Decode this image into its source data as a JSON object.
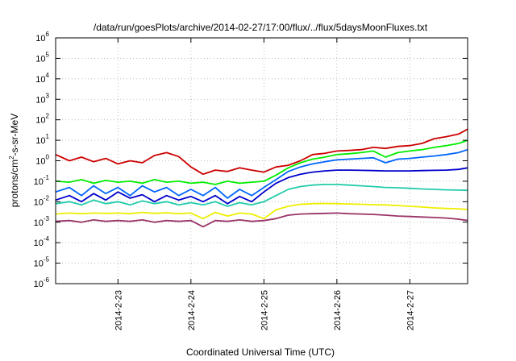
{
  "chart_data": {
    "type": "line",
    "title": "/data/run/goesPlots/archive/2014-02-27/17:00/flux/../flux/5daysMoonFluxes.txt",
    "xlabel": "Coordinated Universal Time (UTC)",
    "ylabel": "protons/cm²-s-sr-MeV",
    "ylabel_parts": {
      "pre": "protons/cm",
      "sup": "2",
      "post": "-s-sr-MeV"
    },
    "y_scale": "log",
    "ylim": [
      1e-06,
      1000000.0
    ],
    "xlim": [
      "2014-02-22T03:30",
      "2014-02-27T19:00"
    ],
    "x_ticks": [
      {
        "label": "2014-2-23",
        "date": "2014-02-23T00:00"
      },
      {
        "label": "2014-2-24",
        "date": "2014-02-24T00:00"
      },
      {
        "label": "2014-2-25",
        "date": "2014-02-25T00:00"
      },
      {
        "label": "2014-2-26",
        "date": "2014-02-26T00:00"
      },
      {
        "label": "2014-2-27",
        "date": "2014-02-27T00:00"
      }
    ],
    "y_ticks": [
      {
        "base": "10",
        "exp": "-6",
        "value": 1e-06
      },
      {
        "base": "10",
        "exp": "-5",
        "value": 1e-05
      },
      {
        "base": "10",
        "exp": "-4",
        "value": 0.0001
      },
      {
        "base": "10",
        "exp": "-3",
        "value": 0.001
      },
      {
        "base": "10",
        "exp": "-2",
        "value": 0.01
      },
      {
        "base": "10",
        "exp": "-1",
        "value": 0.1
      },
      {
        "base": "10",
        "exp": "0",
        "value": 1
      },
      {
        "base": "10",
        "exp": "1",
        "value": 10
      },
      {
        "base": "10",
        "exp": "2",
        "value": 100
      },
      {
        "base": "10",
        "exp": "3",
        "value": 1000
      },
      {
        "base": "10",
        "exp": "4",
        "value": 10000
      },
      {
        "base": "10",
        "exp": "5",
        "value": 100000
      },
      {
        "base": "10",
        "exp": "6",
        "value": 1000000
      }
    ],
    "grid": true,
    "series": [
      {
        "color": "#cc0000",
        "x": [
          "2014-02-22T03:30",
          "2014-02-22T08:00",
          "2014-02-22T12:00",
          "2014-02-22T16:00",
          "2014-02-22T20:00",
          "2014-02-23T00:00",
          "2014-02-23T04:00",
          "2014-02-23T08:00",
          "2014-02-23T12:00",
          "2014-02-23T16:00",
          "2014-02-23T20:00",
          "2014-02-24T00:00",
          "2014-02-24T04:00",
          "2014-02-24T08:00",
          "2014-02-24T12:00",
          "2014-02-24T16:00",
          "2014-02-24T20:00",
          "2014-02-25T00:00",
          "2014-02-25T04:00",
          "2014-02-25T08:00",
          "2014-02-25T12:00",
          "2014-02-25T16:00",
          "2014-02-25T20:00",
          "2014-02-26T00:00",
          "2014-02-26T04:00",
          "2014-02-26T08:00",
          "2014-02-26T12:00",
          "2014-02-26T16:00",
          "2014-02-26T20:00",
          "2014-02-27T00:00",
          "2014-02-27T04:00",
          "2014-02-27T08:00",
          "2014-02-27T12:00",
          "2014-02-27T16:00",
          "2014-02-27T19:00"
        ],
        "values": [
          2.0,
          1.0,
          1.5,
          0.9,
          1.3,
          0.7,
          1.0,
          0.8,
          1.8,
          2.5,
          1.6,
          0.5,
          0.22,
          0.35,
          0.3,
          0.45,
          0.35,
          0.28,
          0.5,
          0.6,
          1.0,
          2.0,
          2.3,
          3.0,
          3.2,
          3.5,
          4.5,
          4.0,
          5.0,
          5.5,
          7.0,
          12.0,
          15.0,
          20.0,
          35.0
        ]
      },
      {
        "color": "#00ee00",
        "x": [
          "2014-02-22T03:30",
          "2014-02-22T08:00",
          "2014-02-22T12:00",
          "2014-02-22T16:00",
          "2014-02-22T20:00",
          "2014-02-23T00:00",
          "2014-02-23T04:00",
          "2014-02-23T08:00",
          "2014-02-23T12:00",
          "2014-02-23T16:00",
          "2014-02-23T20:00",
          "2014-02-24T00:00",
          "2014-02-24T04:00",
          "2014-02-24T08:00",
          "2014-02-24T12:00",
          "2014-02-24T16:00",
          "2014-02-24T20:00",
          "2014-02-25T00:00",
          "2014-02-25T04:00",
          "2014-02-25T08:00",
          "2014-02-25T12:00",
          "2014-02-25T16:00",
          "2014-02-25T20:00",
          "2014-02-26T00:00",
          "2014-02-26T04:00",
          "2014-02-26T08:00",
          "2014-02-26T12:00",
          "2014-02-26T16:00",
          "2014-02-26T20:00",
          "2014-02-27T00:00",
          "2014-02-27T04:00",
          "2014-02-27T08:00",
          "2014-02-27T12:00",
          "2014-02-27T16:00",
          "2014-02-27T19:00"
        ],
        "values": [
          0.1,
          0.09,
          0.12,
          0.08,
          0.11,
          0.09,
          0.1,
          0.08,
          0.12,
          0.09,
          0.1,
          0.08,
          0.09,
          0.07,
          0.1,
          0.08,
          0.09,
          0.1,
          0.2,
          0.45,
          0.8,
          1.2,
          1.5,
          2.0,
          2.2,
          2.5,
          3.0,
          1.5,
          2.5,
          3.0,
          3.5,
          4.5,
          5.5,
          7.0,
          10.0
        ]
      },
      {
        "color": "#0066ff",
        "x": [
          "2014-02-22T03:30",
          "2014-02-22T08:00",
          "2014-02-22T12:00",
          "2014-02-22T16:00",
          "2014-02-22T20:00",
          "2014-02-23T00:00",
          "2014-02-23T04:00",
          "2014-02-23T08:00",
          "2014-02-23T12:00",
          "2014-02-23T16:00",
          "2014-02-23T20:00",
          "2014-02-24T00:00",
          "2014-02-24T04:00",
          "2014-02-24T08:00",
          "2014-02-24T12:00",
          "2014-02-24T16:00",
          "2014-02-24T20:00",
          "2014-02-25T00:00",
          "2014-02-25T04:00",
          "2014-02-25T08:00",
          "2014-02-25T12:00",
          "2014-02-25T16:00",
          "2014-02-25T20:00",
          "2014-02-26T00:00",
          "2014-02-26T04:00",
          "2014-02-26T08:00",
          "2014-02-26T12:00",
          "2014-02-26T16:00",
          "2014-02-26T20:00",
          "2014-02-27T00:00",
          "2014-02-27T04:00",
          "2014-02-27T08:00",
          "2014-02-27T12:00",
          "2014-02-27T16:00",
          "2014-02-27T19:00"
        ],
        "values": [
          0.03,
          0.05,
          0.02,
          0.06,
          0.025,
          0.05,
          0.02,
          0.06,
          0.03,
          0.05,
          0.02,
          0.04,
          0.02,
          0.05,
          0.015,
          0.04,
          0.02,
          0.05,
          0.12,
          0.3,
          0.5,
          0.7,
          0.9,
          1.1,
          1.2,
          1.3,
          1.4,
          0.8,
          1.2,
          1.3,
          1.5,
          1.7,
          2.0,
          2.5,
          3.5
        ]
      },
      {
        "color": "#0000cc",
        "x": [
          "2014-02-22T03:30",
          "2014-02-22T08:00",
          "2014-02-22T12:00",
          "2014-02-22T16:00",
          "2014-02-22T20:00",
          "2014-02-23T00:00",
          "2014-02-23T04:00",
          "2014-02-23T08:00",
          "2014-02-23T12:00",
          "2014-02-23T16:00",
          "2014-02-23T20:00",
          "2014-02-24T00:00",
          "2014-02-24T04:00",
          "2014-02-24T08:00",
          "2014-02-24T12:00",
          "2014-02-24T16:00",
          "2014-02-24T20:00",
          "2014-02-25T00:00",
          "2014-02-25T04:00",
          "2014-02-25T08:00",
          "2014-02-25T12:00",
          "2014-02-25T16:00",
          "2014-02-25T20:00",
          "2014-02-26T00:00",
          "2014-02-26T04:00",
          "2014-02-26T08:00",
          "2014-02-26T12:00",
          "2014-02-26T16:00",
          "2014-02-26T20:00",
          "2014-02-27T00:00",
          "2014-02-27T04:00",
          "2014-02-27T08:00",
          "2014-02-27T12:00",
          "2014-02-27T16:00",
          "2014-02-27T19:00"
        ],
        "values": [
          0.012,
          0.02,
          0.01,
          0.025,
          0.012,
          0.03,
          0.015,
          0.022,
          0.01,
          0.02,
          0.012,
          0.018,
          0.01,
          0.02,
          0.008,
          0.018,
          0.01,
          0.03,
          0.08,
          0.15,
          0.22,
          0.28,
          0.32,
          0.35,
          0.35,
          0.34,
          0.33,
          0.32,
          0.32,
          0.32,
          0.33,
          0.34,
          0.35,
          0.38,
          0.45
        ]
      },
      {
        "color": "#22ccaa",
        "x": [
          "2014-02-22T03:30",
          "2014-02-22T08:00",
          "2014-02-22T12:00",
          "2014-02-22T16:00",
          "2014-02-22T20:00",
          "2014-02-23T00:00",
          "2014-02-23T04:00",
          "2014-02-23T08:00",
          "2014-02-23T12:00",
          "2014-02-23T16:00",
          "2014-02-23T20:00",
          "2014-02-24T00:00",
          "2014-02-24T04:00",
          "2014-02-24T08:00",
          "2014-02-24T12:00",
          "2014-02-24T16:00",
          "2014-02-24T20:00",
          "2014-02-25T00:00",
          "2014-02-25T04:00",
          "2014-02-25T08:00",
          "2014-02-25T12:00",
          "2014-02-25T16:00",
          "2014-02-25T20:00",
          "2014-02-26T00:00",
          "2014-02-26T04:00",
          "2014-02-26T08:00",
          "2014-02-26T12:00",
          "2014-02-26T16:00",
          "2014-02-26T20:00",
          "2014-02-27T00:00",
          "2014-02-27T04:00",
          "2014-02-27T08:00",
          "2014-02-27T12:00",
          "2014-02-27T16:00",
          "2014-02-27T19:00"
        ],
        "values": [
          0.008,
          0.01,
          0.007,
          0.012,
          0.008,
          0.01,
          0.007,
          0.011,
          0.008,
          0.01,
          0.007,
          0.009,
          0.007,
          0.01,
          0.006,
          0.009,
          0.007,
          0.01,
          0.02,
          0.04,
          0.055,
          0.065,
          0.07,
          0.07,
          0.065,
          0.06,
          0.055,
          0.05,
          0.048,
          0.045,
          0.042,
          0.04,
          0.038,
          0.037,
          0.036
        ]
      },
      {
        "color": "#eeee00",
        "x": [
          "2014-02-22T03:30",
          "2014-02-22T08:00",
          "2014-02-22T12:00",
          "2014-02-22T16:00",
          "2014-02-22T20:00",
          "2014-02-23T00:00",
          "2014-02-23T04:00",
          "2014-02-23T08:00",
          "2014-02-23T12:00",
          "2014-02-23T16:00",
          "2014-02-23T20:00",
          "2014-02-24T00:00",
          "2014-02-24T04:00",
          "2014-02-24T08:00",
          "2014-02-24T12:00",
          "2014-02-24T16:00",
          "2014-02-24T20:00",
          "2014-02-25T00:00",
          "2014-02-25T04:00",
          "2014-02-25T08:00",
          "2014-02-25T12:00",
          "2014-02-25T16:00",
          "2014-02-25T20:00",
          "2014-02-26T00:00",
          "2014-02-26T04:00",
          "2014-02-26T08:00",
          "2014-02-26T12:00",
          "2014-02-26T16:00",
          "2014-02-26T20:00",
          "2014-02-27T00:00",
          "2014-02-27T04:00",
          "2014-02-27T08:00",
          "2014-02-27T12:00",
          "2014-02-27T16:00",
          "2014-02-27T19:00"
        ],
        "values": [
          0.0025,
          0.0028,
          0.0026,
          0.0028,
          0.0027,
          0.0028,
          0.0026,
          0.003,
          0.0027,
          0.0029,
          0.0026,
          0.0028,
          0.0015,
          0.003,
          0.002,
          0.0028,
          0.0025,
          0.0015,
          0.004,
          0.006,
          0.0075,
          0.008,
          0.0082,
          0.008,
          0.0078,
          0.0075,
          0.0072,
          0.007,
          0.0065,
          0.006,
          0.0055,
          0.005,
          0.0047,
          0.0045,
          0.0042
        ]
      },
      {
        "color": "#993366",
        "x": [
          "2014-02-22T03:30",
          "2014-02-22T08:00",
          "2014-02-22T12:00",
          "2014-02-22T16:00",
          "2014-02-22T20:00",
          "2014-02-23T00:00",
          "2014-02-23T04:00",
          "2014-02-23T08:00",
          "2014-02-23T12:00",
          "2014-02-23T16:00",
          "2014-02-23T20:00",
          "2014-02-24T00:00",
          "2014-02-24T04:00",
          "2014-02-24T08:00",
          "2014-02-24T12:00",
          "2014-02-24T16:00",
          "2014-02-24T20:00",
          "2014-02-25T00:00",
          "2014-02-25T04:00",
          "2014-02-25T08:00",
          "2014-02-25T12:00",
          "2014-02-25T16:00",
          "2014-02-25T20:00",
          "2014-02-26T00:00",
          "2014-02-26T04:00",
          "2014-02-26T08:00",
          "2014-02-26T12:00",
          "2014-02-26T16:00",
          "2014-02-26T20:00",
          "2014-02-27T00:00",
          "2014-02-27T04:00",
          "2014-02-27T08:00",
          "2014-02-27T12:00",
          "2014-02-27T16:00",
          "2014-02-27T19:00"
        ],
        "values": [
          0.0011,
          0.0012,
          0.001,
          0.0013,
          0.0011,
          0.0012,
          0.0011,
          0.0013,
          0.001,
          0.0012,
          0.0011,
          0.0012,
          0.0006,
          0.0012,
          0.0011,
          0.0013,
          0.0011,
          0.0012,
          0.0015,
          0.0022,
          0.0025,
          0.0026,
          0.0027,
          0.0028,
          0.0026,
          0.0025,
          0.0024,
          0.0022,
          0.002,
          0.0019,
          0.0018,
          0.0017,
          0.0016,
          0.0014,
          0.0012
        ]
      }
    ]
  }
}
